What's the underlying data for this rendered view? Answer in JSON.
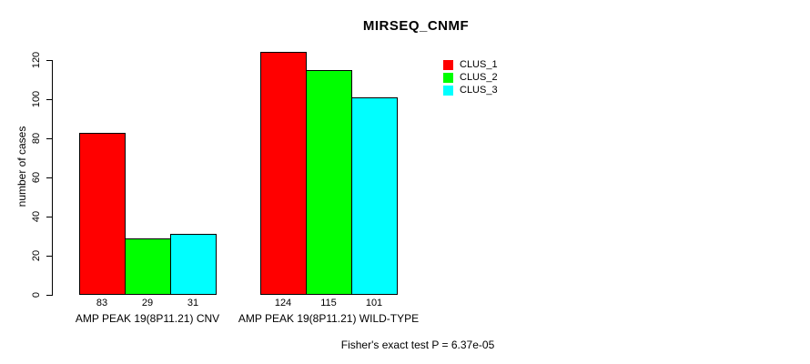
{
  "chart_data": {
    "type": "bar",
    "title": "MIRSEQ_CNMF",
    "ylabel": "number of cases",
    "xlabel": "",
    "categories": [
      "AMP PEAK 19(8P11.21) CNV",
      "AMP PEAK 19(8P11.21) WILD-TYPE"
    ],
    "series": [
      {
        "name": "CLUS_1",
        "color": "#ff0000",
        "values": [
          83,
          124
        ]
      },
      {
        "name": "CLUS_2",
        "color": "#00ff00",
        "values": [
          29,
          115
        ]
      },
      {
        "name": "CLUS_3",
        "color": "#00ffff",
        "values": [
          31,
          101
        ]
      }
    ],
    "y_ticks": [
      0,
      20,
      40,
      60,
      80,
      100,
      120
    ],
    "ylim": [
      0,
      124
    ],
    "grid": false,
    "legend_position": "top-right",
    "bar_value_labels": true,
    "annotation": "Fisher's exact test P = 6.37e-05"
  }
}
